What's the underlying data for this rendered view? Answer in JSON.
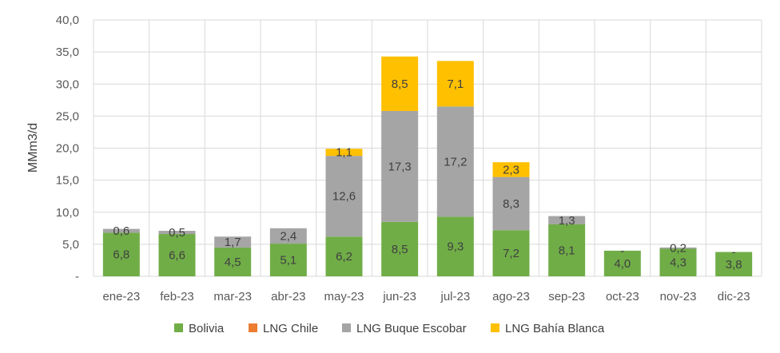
{
  "chart_data": {
    "type": "bar",
    "stacked": true,
    "ylabel": "MMm3/d",
    "ylim": [
      0,
      40
    ],
    "ytick_values": [
      0,
      5,
      10,
      15,
      20,
      25,
      30,
      35,
      40
    ],
    "ytick_labels": [
      "-",
      "5,0",
      "10,0",
      "15,0",
      "20,0",
      "25,0",
      "30,0",
      "35,0",
      "40,0"
    ],
    "grid": true,
    "legend_position": "bottom",
    "categories": [
      "ene-23",
      "feb-23",
      "mar-23",
      "abr-23",
      "may-23",
      "jun-23",
      "jul-23",
      "ago-23",
      "sep-23",
      "oct-23",
      "nov-23",
      "dic-23"
    ],
    "series": [
      {
        "name": "Bolivia",
        "color": "#70ad47",
        "values": [
          6.8,
          6.6,
          4.5,
          5.1,
          6.2,
          8.5,
          9.3,
          7.2,
          8.1,
          4.0,
          4.3,
          3.8
        ],
        "labels": [
          "6,8",
          "6,6",
          "4,5",
          "5,1",
          "6,2",
          "8,5",
          "9,3",
          "7,2",
          "8,1",
          "4,0",
          "4,3",
          "3,8"
        ]
      },
      {
        "name": "LNG Chile",
        "color": "#ed7d31",
        "values": [
          0,
          0,
          0,
          0,
          0,
          0,
          0,
          0,
          0,
          0,
          0,
          0
        ],
        "labels": [
          "",
          "",
          "",
          "",
          "",
          "",
          "",
          "",
          "",
          "",
          "",
          ""
        ]
      },
      {
        "name": "LNG Buque Escobar",
        "color": "#a5a5a5",
        "values": [
          0.6,
          0.5,
          1.7,
          2.4,
          12.6,
          17.3,
          17.2,
          8.3,
          1.3,
          0,
          0.2,
          0
        ],
        "labels": [
          "0,6",
          "0,5",
          "1,7",
          "2,4",
          "12,6",
          "17,3",
          "17,2",
          "8,3",
          "1,3",
          "-",
          "0,2",
          "-"
        ]
      },
      {
        "name": "LNG Bahía Blanca",
        "color": "#ffc000",
        "values": [
          0,
          0,
          0,
          0,
          1.1,
          8.5,
          7.1,
          2.3,
          0,
          0,
          0,
          0
        ],
        "labels": [
          "",
          "",
          "",
          "",
          "1,1",
          "8,5",
          "7,1",
          "2,3",
          "",
          "",
          "",
          ""
        ]
      }
    ]
  }
}
